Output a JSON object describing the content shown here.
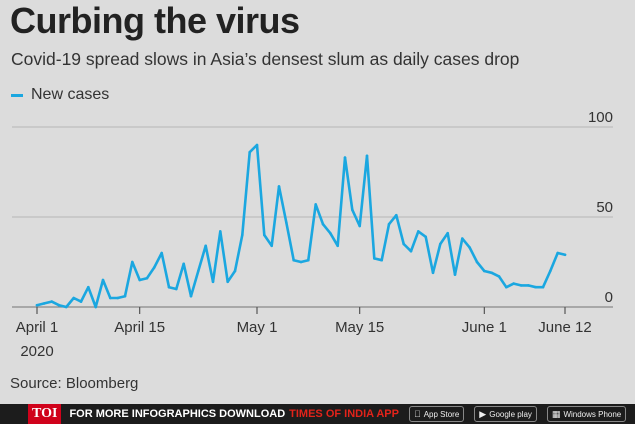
{
  "title": "Curbing the virus",
  "subtitle": "Covid-19 spread slows in Asia’s densest slum as daily cases drop",
  "legend_label": "New cases",
  "source": "Source: Bloomberg",
  "footer": {
    "logo": "TOI",
    "text": "FOR MORE  INFOGRAPHICS DOWNLOAD",
    "brand": "TIMES OF INDIA  APP",
    "app_store": "App Store",
    "google_play": "Google play",
    "windows_phone": "Windows Phone"
  },
  "colors": {
    "line": "#1ba7e0",
    "background": "#dcdcdc",
    "footer": "#1c1c1c",
    "brand": "#e2231a"
  },
  "chart_data": {
    "type": "line",
    "series": [
      {
        "name": "New cases",
        "x": [
          "2020-04-01",
          "2020-04-02",
          "2020-04-03",
          "2020-04-04",
          "2020-04-05",
          "2020-04-06",
          "2020-04-07",
          "2020-04-08",
          "2020-04-09",
          "2020-04-10",
          "2020-04-11",
          "2020-04-12",
          "2020-04-13",
          "2020-04-14",
          "2020-04-15",
          "2020-04-16",
          "2020-04-17",
          "2020-04-18",
          "2020-04-19",
          "2020-04-20",
          "2020-04-21",
          "2020-04-22",
          "2020-04-23",
          "2020-04-24",
          "2020-04-25",
          "2020-04-26",
          "2020-04-27",
          "2020-04-28",
          "2020-04-29",
          "2020-04-30",
          "2020-05-01",
          "2020-05-02",
          "2020-05-03",
          "2020-05-04",
          "2020-05-05",
          "2020-05-06",
          "2020-05-07",
          "2020-05-08",
          "2020-05-09",
          "2020-05-10",
          "2020-05-11",
          "2020-05-12",
          "2020-05-13",
          "2020-05-14",
          "2020-05-15",
          "2020-05-16",
          "2020-05-17",
          "2020-05-18",
          "2020-05-19",
          "2020-05-20",
          "2020-05-21",
          "2020-05-22",
          "2020-05-23",
          "2020-05-24",
          "2020-05-25",
          "2020-05-26",
          "2020-05-27",
          "2020-05-28",
          "2020-05-29",
          "2020-05-30",
          "2020-05-31",
          "2020-06-01",
          "2020-06-02",
          "2020-06-03",
          "2020-06-04",
          "2020-06-05",
          "2020-06-06",
          "2020-06-07",
          "2020-06-08",
          "2020-06-09",
          "2020-06-10",
          "2020-06-11",
          "2020-06-12"
        ],
        "y": [
          1,
          2,
          3,
          1,
          0,
          5,
          3,
          11,
          0,
          15,
          5,
          5,
          6,
          25,
          15,
          16,
          22,
          30,
          11,
          10,
          24,
          6,
          20,
          34,
          14,
          42,
          14,
          20,
          40,
          86,
          90,
          40,
          34,
          67,
          47,
          26,
          25,
          26,
          57,
          46,
          41,
          34,
          83,
          54,
          45,
          84,
          27,
          26,
          46,
          51,
          35,
          31,
          42,
          39,
          19,
          35,
          41,
          18,
          38,
          33,
          25,
          20,
          19,
          17,
          11,
          13,
          12,
          12,
          11,
          11,
          20,
          30,
          29
        ]
      }
    ],
    "x_tick_labels": [
      "April 1",
      "2020",
      "April 15",
      "May 1",
      "May 15",
      "June 1",
      "June 12"
    ],
    "x_ticks": [
      "2020-04-01",
      "2020-04-15",
      "2020-05-01",
      "2020-05-15",
      "2020-06-01",
      "2020-06-12"
    ],
    "y_ticks": [
      100,
      50,
      0
    ],
    "ylim": [
      0,
      100
    ],
    "xlabel": "",
    "ylabel": "",
    "grid": true,
    "legend_position": "top-left"
  }
}
